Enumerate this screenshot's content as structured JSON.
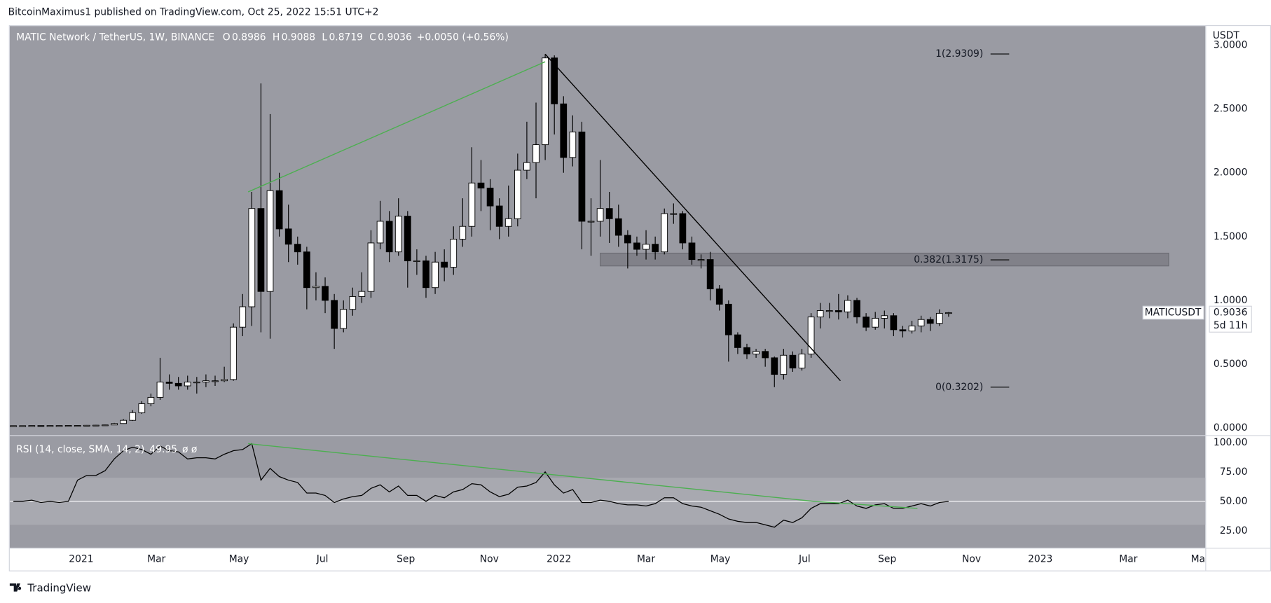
{
  "header": {
    "text": "BitcoinMaximus1 published on TradingView.com, Oct 25, 2022 15:51 UTC+2"
  },
  "footer": {
    "brand": "TradingView"
  },
  "chart_data": [
    {
      "type": "candlestick",
      "title": "MATIC Network / TetherUS, 1W, BINANCE",
      "ohlc_labels": [
        "O",
        "H",
        "L",
        "C"
      ],
      "change": "+0.0050 (+0.56%)",
      "symbol": "MATICUSDT",
      "countdown": "5d 11h",
      "axis_unit": "USDT",
      "up_color": "#ffffff",
      "down_color": "#000000",
      "wick_color": "#000000",
      "open": [
        0.018,
        0.018,
        0.018,
        0.019,
        0.018,
        0.019,
        0.019,
        0.02,
        0.02,
        0.021,
        0.022,
        0.024,
        0.035,
        0.06,
        0.12,
        0.19,
        0.24,
        0.36,
        0.35,
        0.33,
        0.36,
        0.36,
        0.37,
        0.37,
        0.38,
        0.79,
        0.95,
        1.72,
        1.07,
        1.86,
        1.56,
        1.44,
        1.38,
        1.1,
        1.11,
        1.0,
        0.78,
        0.93,
        1.03,
        1.07,
        1.45,
        1.62,
        1.38,
        1.66,
        1.31,
        1.31,
        1.1,
        1.3,
        1.26,
        1.48,
        1.58,
        1.92,
        1.88,
        1.74,
        1.58,
        1.64,
        2.02,
        2.08,
        2.22,
        2.9,
        2.54,
        2.12,
        2.32,
        1.62,
        1.62,
        1.72,
        1.64,
        1.51,
        1.45,
        1.4,
        1.44,
        1.38,
        1.68,
        1.68,
        1.45,
        1.32,
        1.32,
        1.09,
        0.97,
        0.73,
        0.63,
        0.58,
        0.6,
        0.55,
        0.42,
        0.57,
        0.47,
        0.58,
        0.87,
        0.92,
        0.92,
        0.91,
        1.0,
        0.87,
        0.79,
        0.86,
        0.88,
        0.77,
        0.76,
        0.8,
        0.85,
        0.82,
        0.8986
      ],
      "high": [
        0.019,
        0.019,
        0.02,
        0.02,
        0.02,
        0.02,
        0.021,
        0.022,
        0.023,
        0.024,
        0.026,
        0.04,
        0.07,
        0.14,
        0.21,
        0.27,
        0.55,
        0.42,
        0.4,
        0.41,
        0.4,
        0.42,
        0.41,
        0.48,
        0.82,
        1.05,
        1.85,
        2.7,
        2.46,
        2.0,
        1.75,
        1.5,
        1.42,
        1.22,
        1.18,
        1.05,
        1.0,
        1.1,
        1.22,
        1.55,
        1.78,
        1.7,
        1.8,
        1.7,
        1.4,
        1.35,
        1.38,
        1.4,
        1.58,
        1.8,
        2.2,
        2.1,
        1.95,
        1.8,
        1.9,
        2.15,
        2.4,
        2.55,
        2.93,
        2.92,
        2.6,
        2.45,
        2.4,
        1.8,
        2.1,
        1.85,
        1.75,
        1.55,
        1.5,
        1.55,
        1.5,
        1.72,
        1.76,
        1.7,
        1.5,
        1.36,
        1.38,
        1.12,
        1.0,
        0.75,
        0.66,
        0.62,
        0.62,
        0.56,
        0.62,
        0.6,
        0.62,
        0.9,
        0.98,
        0.98,
        1.05,
        1.04,
        1.02,
        0.9,
        0.91,
        0.92,
        0.9,
        0.8,
        0.84,
        0.88,
        0.87,
        0.93,
        0.9088
      ],
      "low": [
        0.017,
        0.017,
        0.017,
        0.017,
        0.017,
        0.018,
        0.018,
        0.019,
        0.019,
        0.02,
        0.021,
        0.023,
        0.033,
        0.055,
        0.11,
        0.17,
        0.22,
        0.3,
        0.3,
        0.3,
        0.27,
        0.32,
        0.33,
        0.36,
        0.37,
        0.72,
        0.8,
        0.75,
        0.7,
        1.5,
        1.3,
        1.28,
        0.93,
        1.0,
        0.9,
        0.62,
        0.75,
        0.88,
        0.98,
        1.02,
        1.4,
        1.3,
        1.35,
        1.1,
        1.2,
        1.02,
        1.05,
        1.15,
        1.2,
        1.42,
        1.5,
        1.7,
        1.55,
        1.48,
        1.5,
        1.58,
        1.95,
        1.8,
        2.1,
        2.3,
        2.0,
        2.05,
        1.4,
        1.35,
        1.5,
        1.45,
        1.42,
        1.25,
        1.35,
        1.32,
        1.32,
        1.36,
        1.6,
        1.4,
        1.28,
        1.25,
        1.0,
        0.92,
        0.52,
        0.58,
        0.54,
        0.55,
        0.48,
        0.32,
        0.38,
        0.44,
        0.45,
        0.55,
        0.78,
        0.86,
        0.85,
        0.86,
        0.82,
        0.76,
        0.77,
        0.78,
        0.72,
        0.71,
        0.74,
        0.75,
        0.76,
        0.8,
        0.8719
      ],
      "close": [
        0.018,
        0.018,
        0.019,
        0.018,
        0.019,
        0.019,
        0.02,
        0.02,
        0.021,
        0.022,
        0.024,
        0.035,
        0.06,
        0.12,
        0.19,
        0.24,
        0.36,
        0.35,
        0.33,
        0.36,
        0.36,
        0.37,
        0.37,
        0.38,
        0.79,
        0.95,
        1.72,
        1.07,
        1.86,
        1.56,
        1.44,
        1.38,
        1.1,
        1.11,
        1.0,
        0.78,
        0.93,
        1.03,
        1.07,
        1.45,
        1.62,
        1.38,
        1.66,
        1.31,
        1.31,
        1.1,
        1.3,
        1.26,
        1.48,
        1.58,
        1.92,
        1.88,
        1.74,
        1.58,
        1.64,
        2.02,
        2.08,
        2.22,
        2.9,
        2.54,
        2.12,
        2.32,
        1.62,
        1.62,
        1.72,
        1.64,
        1.51,
        1.45,
        1.4,
        1.44,
        1.38,
        1.68,
        1.68,
        1.45,
        1.32,
        1.32,
        1.09,
        0.97,
        0.73,
        0.63,
        0.58,
        0.6,
        0.55,
        0.42,
        0.57,
        0.47,
        0.58,
        0.87,
        0.92,
        0.92,
        0.91,
        1.0,
        0.87,
        0.79,
        0.86,
        0.88,
        0.77,
        0.76,
        0.8,
        0.85,
        0.82,
        0.8986,
        0.9036
      ],
      "xlim": [
        -0.4,
        130
      ],
      "xticks": [
        {
          "value": 7.4,
          "label": "2021"
        },
        {
          "value": 15.6,
          "label": "Mar"
        },
        {
          "value": 24.6,
          "label": "May"
        },
        {
          "value": 33.7,
          "label": "Jul"
        },
        {
          "value": 42.8,
          "label": "Sep"
        },
        {
          "value": 51.9,
          "label": "Nov"
        },
        {
          "value": 59.5,
          "label": "2022"
        },
        {
          "value": 69.0,
          "label": "Mar"
        },
        {
          "value": 77.1,
          "label": "May"
        },
        {
          "value": 86.3,
          "label": "Jul"
        },
        {
          "value": 95.3,
          "label": "Sep"
        },
        {
          "value": 104.5,
          "label": "Nov"
        },
        {
          "value": 112.0,
          "label": "2023"
        },
        {
          "value": 121.6,
          "label": "Mar"
        },
        {
          "value": 129.2,
          "label": "Ma"
        }
      ],
      "ylim": [
        -0.05,
        3.15
      ],
      "yticks": [
        {
          "value": 0,
          "label": "0.0000"
        },
        {
          "value": 0.5,
          "label": "0.5000"
        },
        {
          "value": 1,
          "label": "1.0000"
        },
        {
          "value": 1.5,
          "label": "1.5000"
        },
        {
          "value": 2,
          "label": "2.0000"
        },
        {
          "value": 2.5,
          "label": "2.5000"
        },
        {
          "value": 3,
          "label": "3.0000"
        }
      ],
      "grid": false,
      "fib_levels": [
        {
          "value": 2.9309,
          "label": "1(2.9309)"
        },
        {
          "value": 1.3175,
          "label": "0.382(1.3175)"
        },
        {
          "value": 0.3202,
          "label": "0(0.3202)"
        }
      ],
      "resistance_zone": {
        "x": [
          64,
          126
        ],
        "y": [
          1.27,
          1.37
        ]
      },
      "trendlines": [
        {
          "x": [
            25.6,
            58
          ],
          "y": [
            1.85,
            2.87
          ],
          "color": "#4caf50"
        },
        {
          "x": [
            58,
            90.2
          ],
          "y": [
            2.93,
            0.37
          ],
          "color": "#000000"
        }
      ]
    },
    {
      "type": "line",
      "extra_values": "ø ø",
      "series": [
        {
          "name": "RSI (14, close, SMA, 14, 2)",
          "color": "#000000",
          "values": [
            50,
            50,
            51,
            49,
            50,
            49,
            50,
            68,
            72,
            72,
            76,
            86,
            93,
            96,
            94,
            90,
            97,
            93,
            92,
            86,
            87,
            87,
            86,
            90,
            93,
            94,
            99,
            68,
            78,
            71,
            68,
            66,
            57,
            57,
            55,
            49,
            52,
            54,
            55,
            61,
            64,
            58,
            63,
            55,
            55,
            50,
            55,
            53,
            58,
            60,
            65,
            64,
            58,
            54,
            56,
            62,
            63,
            66,
            75,
            64,
            57,
            60,
            49,
            49,
            51,
            50,
            48,
            47,
            47,
            46,
            48,
            53,
            53,
            48,
            46,
            45,
            42,
            39,
            35,
            33,
            32,
            32,
            30,
            28,
            34,
            32,
            36,
            44,
            48,
            48,
            48,
            51,
            46,
            44,
            47,
            48,
            44,
            44,
            46,
            48,
            46,
            49,
            49.95
          ]
        }
      ],
      "ylim": [
        10.5,
        105.5
      ],
      "yticks": [
        {
          "value": 25,
          "label": "25.00"
        },
        {
          "value": 50,
          "label": "50.00"
        },
        {
          "value": 75,
          "label": "75.00"
        },
        {
          "value": 100,
          "label": "100.00"
        }
      ],
      "bands": [
        30,
        70
      ],
      "midline": 50,
      "trendlines": [
        {
          "x": [
            25.6,
            87.3
          ],
          "y": [
            99,
            50
          ],
          "color": "#4caf50"
        },
        {
          "x": [
            87.3,
            98.6
          ],
          "y": [
            50,
            44
          ],
          "color": "#4caf50"
        }
      ]
    }
  ]
}
